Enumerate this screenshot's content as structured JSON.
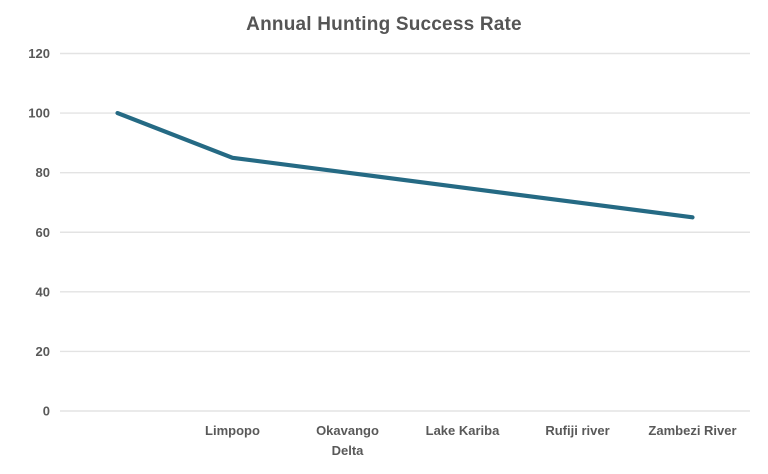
{
  "chart_data": {
    "type": "line",
    "title": "Annual Hunting Success Rate",
    "categories": [
      "",
      "Limpopo",
      "Okavango Delta",
      "Lake Kariba",
      "Rufiji river",
      "Zambezi River"
    ],
    "series": [
      {
        "name": "Annual Hunting Success Rate",
        "values": [
          100,
          85,
          80,
          75,
          70,
          65
        ]
      }
    ],
    "xlabel": "",
    "ylabel": "",
    "ylim": [
      0,
      120
    ],
    "yticks": [
      0,
      20,
      40,
      60,
      80,
      100,
      120
    ],
    "grid": true,
    "legend": false,
    "colors": {
      "line": "#256a84",
      "gridline": "#e3e3e3",
      "axis_label": "#595959",
      "title": "#555555",
      "background": "#ffffff"
    }
  }
}
